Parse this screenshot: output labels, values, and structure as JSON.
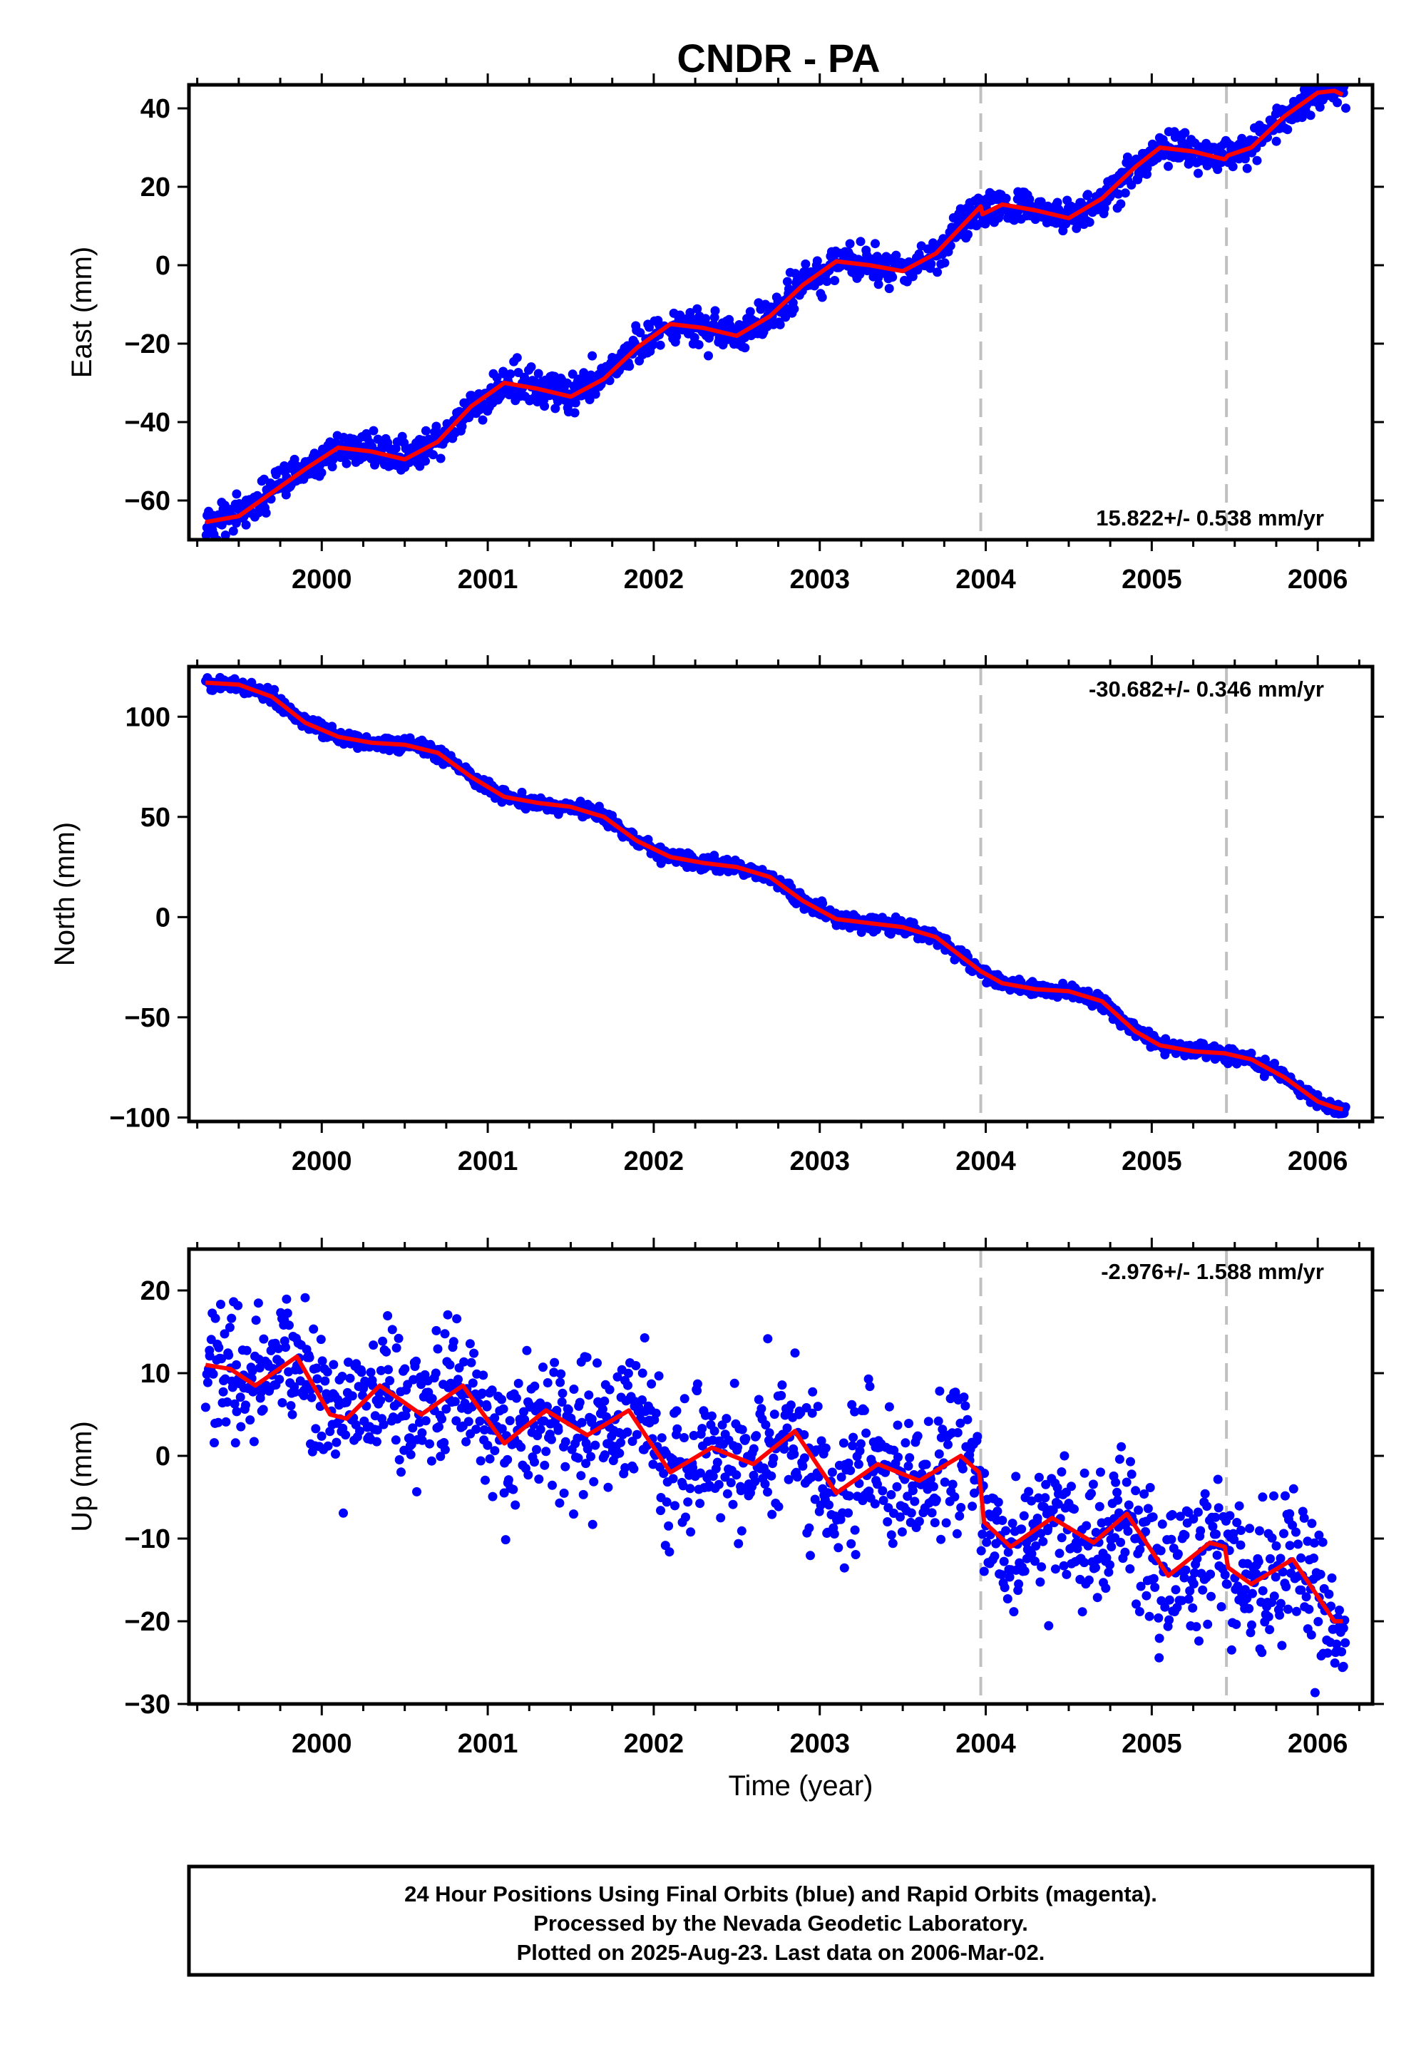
{
  "title": "CNDR - PA",
  "colors": {
    "data": "#0000ff",
    "fit": "#ff0000",
    "dashed": "#c0c0c0",
    "frame": "#000000"
  },
  "chart_data": [
    {
      "type": "scatter",
      "component": "east",
      "ylabel": "East (mm)",
      "xlabel": "",
      "xlim": [
        1999.2,
        2006.33
      ],
      "ylim": [
        -70,
        46
      ],
      "yticks": [
        -60,
        -40,
        -20,
        0,
        20,
        40
      ],
      "xticks": [
        2000,
        2001,
        2002,
        2003,
        2004,
        2005,
        2006
      ],
      "rate_text": "15.822+/- 0.538 mm/yr",
      "rate_position": "bottom-right",
      "offsets": [
        2003.97,
        2005.45
      ],
      "fit_points": [
        [
          1999.3,
          -65.5
        ],
        [
          1999.5,
          -64
        ],
        [
          1999.7,
          -58
        ],
        [
          1999.9,
          -52
        ],
        [
          2000.1,
          -46.5
        ],
        [
          2000.3,
          -47.5
        ],
        [
          2000.5,
          -49.5
        ],
        [
          2000.7,
          -45
        ],
        [
          2000.9,
          -36
        ],
        [
          2001.1,
          -30
        ],
        [
          2001.3,
          -31.5
        ],
        [
          2001.5,
          -33.5
        ],
        [
          2001.7,
          -29
        ],
        [
          2001.9,
          -21
        ],
        [
          2002.1,
          -15
        ],
        [
          2002.3,
          -16
        ],
        [
          2002.5,
          -18
        ],
        [
          2002.7,
          -13
        ],
        [
          2002.9,
          -5
        ],
        [
          2003.1,
          1
        ],
        [
          2003.3,
          0
        ],
        [
          2003.5,
          -1.5
        ],
        [
          2003.7,
          3
        ],
        [
          2003.97,
          15
        ],
        [
          2003.98,
          13
        ],
        [
          2004.1,
          15.5
        ],
        [
          2004.3,
          14
        ],
        [
          2004.5,
          12
        ],
        [
          2004.7,
          17
        ],
        [
          2004.9,
          25
        ],
        [
          2005.05,
          30
        ],
        [
          2005.25,
          29
        ],
        [
          2005.44,
          27
        ],
        [
          2005.46,
          28
        ],
        [
          2005.6,
          30
        ],
        [
          2005.8,
          38
        ],
        [
          2006.0,
          44
        ],
        [
          2006.1,
          44.5
        ],
        [
          2006.15,
          43.5
        ]
      ],
      "scatter_noise": 2.2,
      "scatter_count": 1400,
      "scatter_range": [
        1999.3,
        2006.17
      ]
    },
    {
      "type": "scatter",
      "component": "north",
      "ylabel": "North (mm)",
      "xlabel": "",
      "xlim": [
        1999.2,
        2006.33
      ],
      "ylim": [
        -102,
        125
      ],
      "yticks": [
        -100,
        -50,
        0,
        50,
        100
      ],
      "xticks": [
        2000,
        2001,
        2002,
        2003,
        2004,
        2005,
        2006
      ],
      "rate_text": "-30.682+/- 0.346 mm/yr",
      "rate_position": "top-right",
      "offsets": [
        2003.97,
        2005.45
      ],
      "fit_points": [
        [
          1999.3,
          117
        ],
        [
          1999.5,
          116
        ],
        [
          1999.7,
          110
        ],
        [
          1999.9,
          97
        ],
        [
          2000.1,
          90
        ],
        [
          2000.3,
          87
        ],
        [
          2000.5,
          86
        ],
        [
          2000.7,
          82
        ],
        [
          2000.9,
          70
        ],
        [
          2001.1,
          60
        ],
        [
          2001.3,
          57
        ],
        [
          2001.5,
          55
        ],
        [
          2001.7,
          50
        ],
        [
          2001.9,
          38
        ],
        [
          2002.1,
          30
        ],
        [
          2002.3,
          27
        ],
        [
          2002.5,
          25
        ],
        [
          2002.7,
          20
        ],
        [
          2002.9,
          8
        ],
        [
          2003.1,
          -1
        ],
        [
          2003.3,
          -3
        ],
        [
          2003.5,
          -5
        ],
        [
          2003.7,
          -10
        ],
        [
          2003.97,
          -27
        ],
        [
          2004.1,
          -33
        ],
        [
          2004.3,
          -36
        ],
        [
          2004.5,
          -37
        ],
        [
          2004.7,
          -42
        ],
        [
          2004.9,
          -57
        ],
        [
          2005.05,
          -64
        ],
        [
          2005.25,
          -67
        ],
        [
          2005.44,
          -68
        ],
        [
          2005.6,
          -71
        ],
        [
          2005.8,
          -80
        ],
        [
          2006.0,
          -92
        ],
        [
          2006.1,
          -95
        ],
        [
          2006.15,
          -96
        ]
      ],
      "scatter_noise": 1.8,
      "scatter_count": 1400,
      "scatter_range": [
        1999.3,
        2006.17
      ]
    },
    {
      "type": "scatter",
      "component": "up",
      "ylabel": "Up (mm)",
      "xlabel": "Time (year)",
      "xlim": [
        1999.2,
        2006.33
      ],
      "ylim": [
        -30,
        25
      ],
      "yticks": [
        -30,
        -20,
        -10,
        0,
        10,
        20
      ],
      "xticks": [
        2000,
        2001,
        2002,
        2003,
        2004,
        2005,
        2006
      ],
      "rate_text": "-2.976+/- 1.588 mm/yr",
      "rate_position": "top-right",
      "offsets": [
        2003.97,
        2005.45
      ],
      "fit_points": [
        [
          1999.3,
          11
        ],
        [
          1999.45,
          10.5
        ],
        [
          1999.6,
          8.5
        ],
        [
          1999.85,
          12
        ],
        [
          2000.05,
          5
        ],
        [
          2000.15,
          4.5
        ],
        [
          2000.35,
          8.5
        ],
        [
          2000.6,
          5
        ],
        [
          2000.85,
          8.5
        ],
        [
          2001.1,
          1.5
        ],
        [
          2001.35,
          5.5
        ],
        [
          2001.6,
          2.5
        ],
        [
          2001.85,
          5.5
        ],
        [
          2002.1,
          -2
        ],
        [
          2002.35,
          1
        ],
        [
          2002.6,
          -1
        ],
        [
          2002.85,
          3
        ],
        [
          2003.1,
          -4.5
        ],
        [
          2003.35,
          -1
        ],
        [
          2003.6,
          -3
        ],
        [
          2003.85,
          0
        ],
        [
          2003.96,
          -2
        ],
        [
          2003.99,
          -8
        ],
        [
          2004.15,
          -11
        ],
        [
          2004.4,
          -7.5
        ],
        [
          2004.65,
          -10.5
        ],
        [
          2004.85,
          -7
        ],
        [
          2005.1,
          -14.5
        ],
        [
          2005.35,
          -10.5
        ],
        [
          2005.44,
          -11
        ],
        [
          2005.46,
          -13.5
        ],
        [
          2005.6,
          -15.5
        ],
        [
          2005.85,
          -12.5
        ],
        [
          2006.1,
          -20
        ],
        [
          2006.15,
          -20
        ]
      ],
      "scatter_noise": 4.2,
      "scatter_count": 1400,
      "scatter_range": [
        1999.3,
        2006.17
      ]
    }
  ],
  "footer": {
    "line1": "24 Hour Positions Using Final Orbits (blue) and Rapid Orbits (magenta).",
    "line2": "Processed by the Nevada Geodetic Laboratory.",
    "line3": "Plotted on 2025-Aug-23. Last data on 2006-Mar-02."
  }
}
